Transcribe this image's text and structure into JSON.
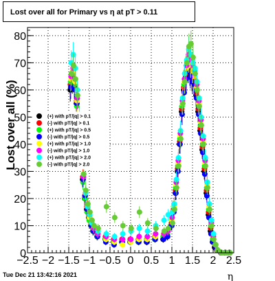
{
  "title": "Lost over all for Primary vs   η at pT > 0.11",
  "footer": "Tue Dec 21 13:42:16 2021",
  "chart_data": {
    "type": "scatter",
    "title": "Lost over all for Primary vs   η at pT > 0.11",
    "xlabel": "η",
    "ylabel": "Lost over all (%)",
    "xlim": [
      -2.5,
      2.5
    ],
    "ylim": [
      0,
      83
    ],
    "xticks": [
      "−2.5",
      "−2",
      "−1.5",
      "−1",
      "−0.5",
      "0",
      "0.5",
      "1",
      "1.5",
      "2",
      "2.5"
    ],
    "yticks": [
      "0",
      "10",
      "20",
      "30",
      "40",
      "50",
      "60",
      "70",
      "80"
    ],
    "grid": true,
    "legend_position": "middle-left",
    "legend": [
      {
        "label": "(+) with pT/|q| > 0.1",
        "color": "#000000"
      },
      {
        "label": "(-) with pT/|q| > 0.1",
        "color": "#ff0000"
      },
      {
        "label": "(+) with pT/|q| > 0.5",
        "color": "#00ff00"
      },
      {
        "label": "(-) with pT/|q| > 0.5",
        "color": "#0000ff"
      },
      {
        "label": "(+) with pT/|q| > 1.0",
        "color": "#ffff00"
      },
      {
        "label": "(-) with pT/|q| > 1.0",
        "color": "#ff00ff"
      },
      {
        "label": "(+) with pT/|q| > 2.0",
        "color": "#00ffff"
      },
      {
        "label": "(-) with pT/|q| > 2.0",
        "color": "#66cc33"
      }
    ],
    "series": [
      {
        "name": "(+) with pT/|q| > 0.1",
        "color": "#000000",
        "x": [
          -1.45,
          -1.4,
          -1.35,
          -1.3,
          -1.25,
          -1.2,
          -1.15,
          -1.1,
          -1.05,
          -1.0,
          -0.95,
          -0.9,
          -0.8,
          -0.6,
          -0.4,
          -0.2,
          0.0,
          0.2,
          0.4,
          0.6,
          0.8,
          0.9,
          1.0,
          1.05,
          1.1,
          1.15,
          1.2,
          1.25,
          1.3,
          1.35,
          1.4,
          1.45,
          1.5,
          1.55,
          1.6,
          1.65,
          1.7,
          1.75,
          1.8,
          1.85,
          1.9,
          1.95,
          2.0,
          2.05,
          2.1,
          2.2,
          2.3,
          2.4
        ],
        "y": [
          60,
          63,
          61,
          55,
          45,
          35,
          27,
          20,
          16,
          13,
          10,
          8,
          6,
          5,
          4,
          4,
          4,
          4,
          4,
          5,
          5,
          6,
          10,
          15,
          22,
          30,
          40,
          52,
          60,
          65,
          68,
          66,
          64,
          63,
          58,
          52,
          45,
          38,
          30,
          22,
          14,
          8,
          4,
          2,
          1,
          0,
          0,
          0
        ]
      },
      {
        "name": "(-) with pT/|q| > 0.1",
        "color": "#ff0000",
        "x": [
          -1.45,
          -1.4,
          -1.35,
          -1.3,
          -1.25,
          -1.2,
          -1.15,
          -1.1,
          -1.05,
          -1.0,
          -0.95,
          -0.9,
          -0.8,
          -0.6,
          -0.4,
          -0.2,
          0.0,
          0.2,
          0.4,
          0.6,
          0.8,
          0.9,
          1.0,
          1.05,
          1.1,
          1.15,
          1.2,
          1.25,
          1.3,
          1.35,
          1.4,
          1.45,
          1.5,
          1.55,
          1.6,
          1.65,
          1.7,
          1.75,
          1.8,
          1.85,
          1.9,
          1.95,
          2.0,
          2.05,
          2.1,
          2.2,
          2.3,
          2.4
        ],
        "y": [
          62,
          65,
          63,
          56,
          46,
          36,
          28,
          21,
          17,
          14,
          11,
          9,
          7,
          6,
          5,
          5,
          5,
          5,
          5,
          6,
          6,
          7,
          11,
          16,
          23,
          31,
          41,
          53,
          61,
          66,
          69,
          67,
          65,
          64,
          59,
          53,
          46,
          39,
          31,
          23,
          15,
          9,
          5,
          3,
          1,
          0,
          0,
          0
        ]
      },
      {
        "name": "(+) with pT/|q| > 0.5",
        "color": "#00ff00",
        "x": [
          -1.45,
          -1.4,
          -1.35,
          -1.3,
          -1.25,
          -1.2,
          -1.15,
          -1.1,
          -1.05,
          -1.0,
          -0.95,
          -0.9,
          -0.8,
          -0.6,
          -0.4,
          -0.2,
          0.0,
          0.2,
          0.4,
          0.6,
          0.8,
          0.9,
          1.0,
          1.05,
          1.1,
          1.15,
          1.2,
          1.25,
          1.3,
          1.35,
          1.4,
          1.45,
          1.5,
          1.55,
          1.6,
          1.65,
          1.7,
          1.75,
          1.8,
          1.85,
          1.9,
          1.95,
          2.0,
          2.05,
          2.1,
          2.2,
          2.3,
          2.4
        ],
        "y": [
          63,
          66,
          62,
          54,
          44,
          34,
          26,
          20,
          15,
          12,
          10,
          8,
          6,
          5,
          4,
          4,
          4,
          4,
          5,
          5,
          6,
          7,
          12,
          17,
          24,
          32,
          42,
          54,
          62,
          67,
          72,
          70,
          68,
          66,
          60,
          54,
          47,
          40,
          32,
          24,
          16,
          10,
          5,
          3,
          1,
          0,
          0,
          0
        ]
      },
      {
        "name": "(-) with pT/|q| > 0.5",
        "color": "#0000ff",
        "x": [
          -1.45,
          -1.4,
          -1.35,
          -1.3,
          -1.25,
          -1.2,
          -1.15,
          -1.1,
          -1.05,
          -1.0,
          -0.95,
          -0.9,
          -0.8,
          -0.6,
          -0.4,
          -0.2,
          0.0,
          0.2,
          0.4,
          0.6,
          0.8,
          0.9,
          1.0,
          1.05,
          1.1,
          1.15,
          1.2,
          1.25,
          1.3,
          1.35,
          1.4,
          1.45,
          1.5,
          1.55,
          1.6,
          1.65,
          1.7,
          1.75,
          1.8,
          1.85,
          1.9,
          1.95,
          2.0,
          2.05,
          2.1,
          2.2,
          2.3,
          2.4
        ],
        "y": [
          61,
          64,
          60,
          55,
          45,
          35,
          27,
          21,
          16,
          13,
          10,
          8,
          6,
          4,
          3,
          4,
          4,
          4,
          4,
          5,
          5,
          6,
          10,
          15,
          22,
          30,
          40,
          51,
          59,
          64,
          67,
          65,
          63,
          62,
          57,
          51,
          44,
          37,
          29,
          21,
          13,
          7,
          4,
          2,
          1,
          0,
          0,
          0
        ]
      },
      {
        "name": "(+) with pT/|q| > 1.0",
        "color": "#ffff00",
        "x": [
          -1.45,
          -1.4,
          -1.35,
          -1.3,
          -1.25,
          -1.2,
          -1.15,
          -1.1,
          -1.05,
          -1.0,
          -0.95,
          -0.9,
          -0.8,
          -0.6,
          -0.4,
          -0.2,
          0.0,
          0.2,
          0.4,
          0.6,
          0.8,
          0.9,
          1.0,
          1.05,
          1.1,
          1.15,
          1.2,
          1.25,
          1.3,
          1.35,
          1.4,
          1.45,
          1.5,
          1.55,
          1.6,
          1.65,
          1.7,
          1.75,
          1.8,
          1.85,
          1.9,
          1.95,
          2.0,
          2.05,
          2.1,
          2.2,
          2.3,
          2.4
        ],
        "y": [
          64,
          67,
          63,
          56,
          47,
          37,
          29,
          22,
          17,
          13,
          11,
          9,
          7,
          5,
          4,
          3,
          4,
          5,
          5,
          6,
          7,
          8,
          12,
          17,
          25,
          33,
          43,
          55,
          63,
          68,
          71,
          69,
          67,
          65,
          61,
          55,
          48,
          41,
          33,
          25,
          17,
          11,
          6,
          3,
          1,
          0,
          0,
          0
        ]
      },
      {
        "name": "(-) with pT/|q| > 1.0",
        "color": "#ff00ff",
        "x": [
          -1.45,
          -1.4,
          -1.35,
          -1.3,
          -1.25,
          -1.2,
          -1.15,
          -1.1,
          -1.05,
          -1.0,
          -0.95,
          -0.9,
          -0.8,
          -0.6,
          -0.4,
          -0.2,
          0.0,
          0.2,
          0.4,
          0.6,
          0.8,
          0.9,
          1.0,
          1.05,
          1.1,
          1.15,
          1.2,
          1.25,
          1.3,
          1.35,
          1.4,
          1.45,
          1.5,
          1.55,
          1.6,
          1.65,
          1.7,
          1.75,
          1.8,
          1.85,
          1.9,
          1.95,
          2.0,
          2.05,
          2.1,
          2.2,
          2.3,
          2.4
        ],
        "y": [
          65,
          68,
          64,
          57,
          47,
          36,
          28,
          22,
          17,
          14,
          11,
          9,
          7,
          6,
          5,
          5,
          5,
          6,
          6,
          7,
          7,
          8,
          13,
          18,
          26,
          34,
          44,
          56,
          64,
          69,
          73,
          71,
          69,
          67,
          62,
          56,
          49,
          42,
          34,
          26,
          18,
          11,
          6,
          3,
          1,
          0,
          0,
          0
        ]
      },
      {
        "name": "(+) with pT/|q| > 2.0",
        "color": "#00ffff",
        "x": [
          -1.45,
          -1.4,
          -1.35,
          -1.3,
          -1.25,
          -1.2,
          -1.15,
          -1.1,
          -1.05,
          -1.0,
          -0.95,
          -0.9,
          -0.8,
          -0.6,
          -0.4,
          -0.2,
          0.0,
          0.2,
          0.4,
          0.6,
          0.8,
          0.9,
          1.0,
          1.05,
          1.1,
          1.15,
          1.2,
          1.25,
          1.3,
          1.35,
          1.4,
          1.45,
          1.5,
          1.55,
          1.6,
          1.65,
          1.7,
          1.75,
          1.8,
          1.85,
          1.9,
          1.95,
          2.0,
          2.05,
          2.1,
          2.2,
          2.3,
          2.4
        ],
        "y": [
          70,
          73,
          68,
          60,
          50,
          38,
          29,
          22,
          17,
          14,
          11,
          10,
          8,
          7,
          6,
          7,
          8,
          9,
          8,
          10,
          12,
          14,
          15,
          18,
          27,
          35,
          45,
          57,
          66,
          71,
          75,
          73,
          70,
          68,
          63,
          57,
          50,
          43,
          35,
          26,
          18,
          12,
          7,
          3,
          1,
          0,
          0,
          0
        ]
      },
      {
        "name": "(-) with pT/|q| > 2.0",
        "color": "#66cc33",
        "x": [
          -1.45,
          -1.4,
          -1.35,
          -1.3,
          -1.25,
          -1.2,
          -1.15,
          -1.1,
          -1.05,
          -1.0,
          -0.95,
          -0.9,
          -0.8,
          -0.6,
          -0.4,
          -0.2,
          0.0,
          0.2,
          0.4,
          0.6,
          0.8,
          0.9,
          1.0,
          1.05,
          1.1,
          1.15,
          1.2,
          1.25,
          1.3,
          1.35,
          1.4,
          1.45,
          1.5,
          1.55,
          1.6,
          1.65,
          1.7,
          1.75,
          1.8,
          1.85,
          1.9,
          1.95,
          2.0,
          2.05,
          2.1,
          2.2,
          2.3,
          2.4
        ],
        "y": [
          66,
          69,
          64,
          58,
          48,
          38,
          29,
          23,
          18,
          15,
          12,
          10,
          9,
          17,
          13,
          10,
          9,
          15,
          11,
          9,
          8,
          9,
          11,
          16,
          24,
          32,
          42,
          55,
          63,
          70,
          76,
          77,
          72,
          66,
          60,
          54,
          47,
          40,
          32,
          24,
          16,
          10,
          5,
          3,
          1,
          0,
          0,
          0
        ]
      }
    ]
  }
}
